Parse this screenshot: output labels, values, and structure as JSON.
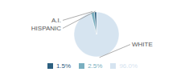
{
  "chart_data": {
    "type": "pie",
    "categories": [
      "WHITE",
      "A.I.",
      "HISPANIC"
    ],
    "values": [
      96.0,
      2.5,
      1.5
    ],
    "value_labels": [
      "96.0%",
      "2.5%",
      "1.5%"
    ],
    "colors": [
      "#d6e4f0",
      "#7aafc0",
      "#2d6080"
    ],
    "legend": "bottom"
  }
}
